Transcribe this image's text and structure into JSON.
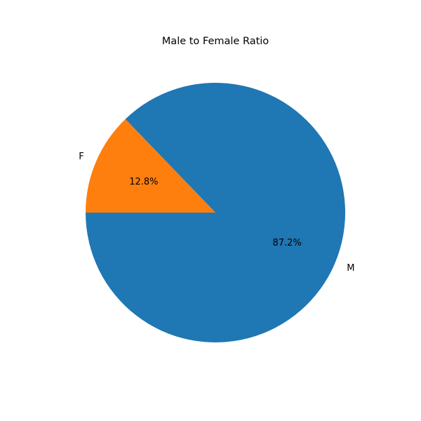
{
  "chart_data": {
    "type": "pie",
    "title": "Male to Female Ratio",
    "slices": [
      {
        "label": "M",
        "value": 87.2,
        "pct_label": "87.2%",
        "color": "#1f77b4"
      },
      {
        "label": "F",
        "value": 12.8,
        "pct_label": "12.8%",
        "color": "#ff7f0e"
      }
    ],
    "start_angle_deg": 180,
    "direction": "counterclockwise"
  }
}
